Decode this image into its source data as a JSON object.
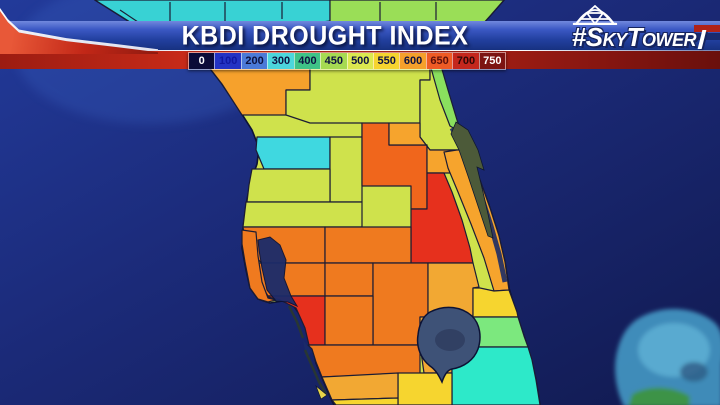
{
  "header": {
    "title": "KBDI DROUGHT INDEX",
    "brand": "#SkyTower",
    "brand_parts": {
      "p1": "#S",
      "p2": "KY",
      "p3": "T",
      "p4": "OWER"
    }
  },
  "scale": {
    "cells": [
      {
        "label": "0",
        "bg": "#0b0b38",
        "fg": "#ffffff"
      },
      {
        "label": "100",
        "bg": "#2333c4",
        "fg": "#1018a0"
      },
      {
        "label": "200",
        "bg": "#4b7ad8",
        "fg": "#0d1240"
      },
      {
        "label": "300",
        "bg": "#4cd6dc",
        "fg": "#0d1240"
      },
      {
        "label": "400",
        "bg": "#3fc287",
        "fg": "#0d1240"
      },
      {
        "label": "450",
        "bg": "#a6da52",
        "fg": "#0d1240"
      },
      {
        "label": "500",
        "bg": "#dce84f",
        "fg": "#0d1240"
      },
      {
        "label": "550",
        "bg": "#f6d42f",
        "fg": "#0d1240"
      },
      {
        "label": "600",
        "bg": "#f5a02b",
        "fg": "#0d1240"
      },
      {
        "label": "650",
        "bg": "#ee5b25",
        "fg": "#5c100c"
      },
      {
        "label": "700",
        "bg": "#c4271d",
        "fg": "#2e0706"
      },
      {
        "label": "750",
        "bg": "#7c1412",
        "fg": "#ffffff"
      }
    ]
  },
  "map": {
    "ocean": {
      "light": "#223a9a",
      "mid": "#1b2a78",
      "deep": "#111a50",
      "gulf_glow": "#3a64c4"
    },
    "region_colors": {
      "land_base": "#cfe24c",
      "top_cyan": "#38d2d4",
      "top_green": "#9ade57",
      "levy": "#f6a12c",
      "marion": "#cfe24c",
      "volusia": "#cfe24c",
      "flagler": "#8ae05e",
      "citrus": "#3fd8e0",
      "sumter": "#cfe24c",
      "hernando": "#cfe24c",
      "pasco": "#cfe24c",
      "lake": "#f0661c",
      "orange": "#f6a42d",
      "brevard": "#f6a42d",
      "osceola": "#e6301d",
      "hillsborough": "#ef7a1f",
      "pinellas": "#ef7a1f",
      "polk": "#ef7a1f",
      "manatee": "#ef7a1f",
      "hardee": "#ef7a1f",
      "desoto": "#ef7a1f",
      "highlands": "#ef7a1f",
      "okeechobee": "#f2a833",
      "sarasota": "#e6301d",
      "charlotte": "#ef7a1f",
      "glades": "#f2a833",
      "stlucie": "#f6d52f",
      "martin": "#7ce87e",
      "palmbeach": "#2de9c9",
      "hendry": "#f6d52f",
      "lee": "#f2a833",
      "lee_south": "#f6d52f",
      "tampa_bay": "#1b2b6a",
      "lake_okeechobee": "#3e5277",
      "lake_okeechobee_dark": "#2d3b5c",
      "barrier_island": "#4c5a39",
      "sanibel": "#e8d44a",
      "bahamas_bank": "#4aa8d2",
      "bahamas_shallow": "#74c8e6",
      "bahamas_dark": "#2f5d86",
      "bahamas_island": "#3c9440"
    }
  }
}
